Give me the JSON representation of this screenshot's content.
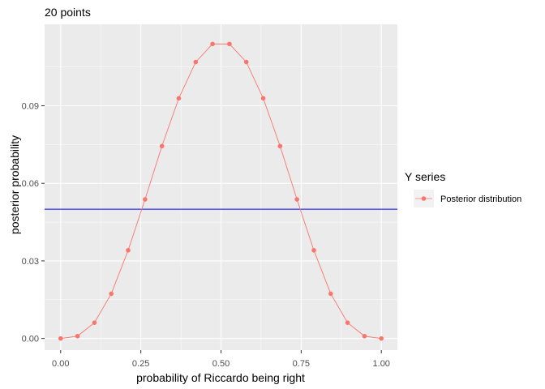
{
  "chart_data": {
    "type": "line",
    "title": "20 points",
    "xlabel": "probability of Riccardo being right",
    "ylabel": "posterior probability",
    "xlim": [
      -0.05,
      1.05
    ],
    "ylim": [
      -0.0045,
      0.1215
    ],
    "x_ticks": [
      0.0,
      0.25,
      0.5,
      0.75,
      1.0
    ],
    "x_tick_labels": [
      "0.00",
      "0.25",
      "0.50",
      "0.75",
      "1.00"
    ],
    "y_ticks": [
      0.0,
      0.03,
      0.06,
      0.09
    ],
    "y_tick_labels": [
      "0.00",
      "0.03",
      "0.06",
      "0.09"
    ],
    "grid": true,
    "background": "#EBEBEB",
    "legend": {
      "title": "Y series",
      "position": "right"
    },
    "series": [
      {
        "name": "Posterior distribution",
        "color": "#F8766D",
        "x": [
          0.0,
          0.0526,
          0.1053,
          0.1579,
          0.2105,
          0.2632,
          0.3158,
          0.3684,
          0.4211,
          0.4737,
          0.5263,
          0.5789,
          0.6316,
          0.6842,
          0.7368,
          0.7895,
          0.8421,
          0.8947,
          0.9474,
          1.0
        ],
        "y": [
          0.0,
          0.0009,
          0.0061,
          0.0173,
          0.0341,
          0.0538,
          0.0744,
          0.0929,
          0.1069,
          0.1139,
          0.1139,
          0.1069,
          0.0929,
          0.0744,
          0.0538,
          0.0341,
          0.0173,
          0.0061,
          0.0009,
          0.0
        ]
      }
    ],
    "hline": {
      "y": 0.05,
      "color": "#0000FF"
    }
  }
}
